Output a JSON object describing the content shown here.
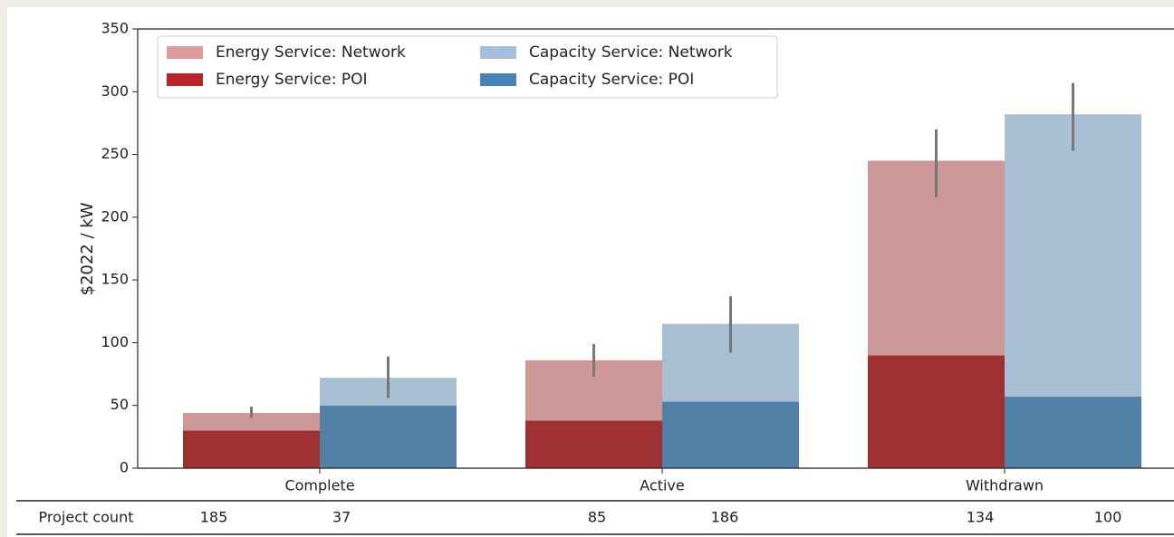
{
  "chart_data": {
    "type": "bar",
    "y_label": "$2022 / kW",
    "categories": [
      "Complete",
      "Active",
      "Withdrawn"
    ],
    "series": [
      {
        "name": "Energy Service: Network",
        "color": "#cf9898",
        "legend_color": "#e09c9c",
        "values": [
          14,
          48,
          155
        ],
        "errors": [
          [
            40,
            49
          ],
          [
            73,
            99
          ],
          [
            216,
            270
          ]
        ]
      },
      {
        "name": "Energy Service: POI",
        "color": "#a03133",
        "legend_color": "#b9252a",
        "values": [
          30,
          38,
          90
        ]
      },
      {
        "name": "Capacity Service: Network",
        "color": "#a8bfd4",
        "legend_color": "#a3c0dc",
        "values": [
          22,
          62,
          225
        ],
        "errors": [
          [
            56,
            89
          ],
          [
            92,
            137
          ],
          [
            253,
            307
          ]
        ]
      },
      {
        "name": "Capacity Service: POI",
        "color": "#5281a8",
        "legend_color": "#4682b7",
        "values": [
          50,
          53,
          57
        ]
      }
    ],
    "ylim": [
      0,
      350
    ],
    "yticks": [
      0,
      50,
      100,
      150,
      200,
      250,
      300,
      350
    ]
  },
  "table": {
    "row_label": "Project count",
    "values": [
      185,
      37,
      85,
      186,
      134,
      100
    ]
  }
}
